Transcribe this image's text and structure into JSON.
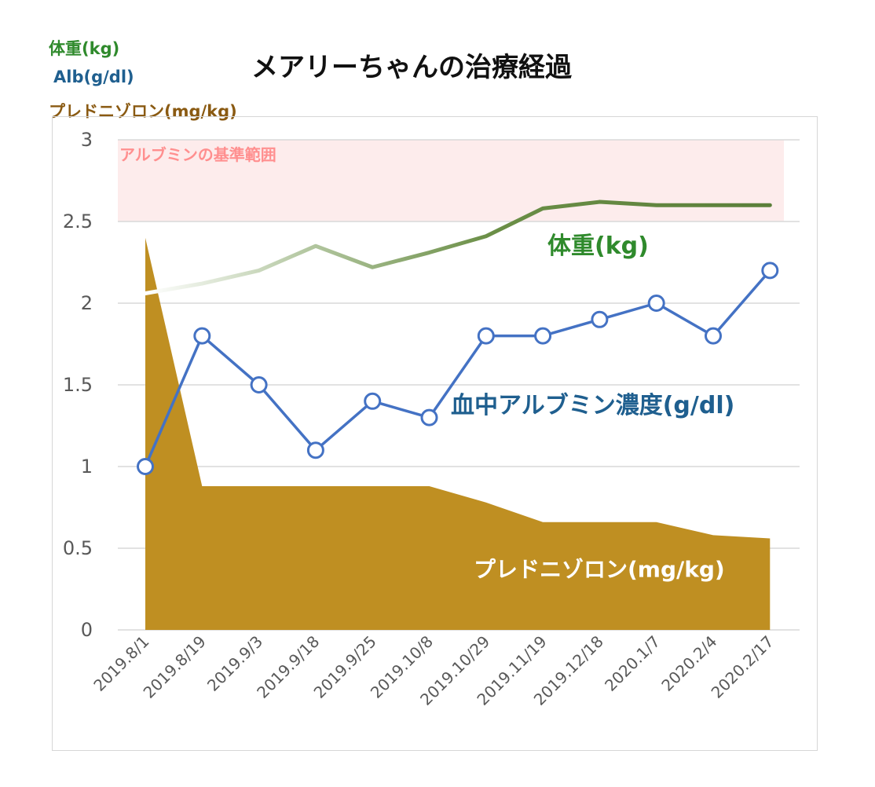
{
  "legend": {
    "weight": "体重(kg)",
    "alb": "Alb(g/dl)",
    "pred": "プレドニゾロン(mg/kg)"
  },
  "chart_data": {
    "type": "line",
    "title": "メアリーちゃんの治療経過",
    "categories": [
      "2019.8/1",
      "2019.8/19",
      "2019.9/3",
      "2019.9/18",
      "2019.9/25",
      "2019.10/8",
      "2019.10/29",
      "2019.11/19",
      "2019.12/18",
      "2020.1/7",
      "2020.2/4",
      "2020.2/17"
    ],
    "ylim": [
      0,
      3
    ],
    "yticks": [
      "0",
      "0.5",
      "1",
      "1.5",
      "2",
      "2.5",
      "3"
    ],
    "grid": true,
    "reference_band": {
      "label": "アルブミンの基準範囲",
      "from": 2.5,
      "to": 3.0,
      "color": "#fdecec"
    },
    "series": [
      {
        "name": "体重(kg)",
        "kind": "line",
        "color": "#5b8a3a",
        "values": [
          2.06,
          2.12,
          2.2,
          2.35,
          2.22,
          2.31,
          2.41,
          2.58,
          2.62,
          2.6,
          2.6,
          2.6
        ]
      },
      {
        "name": "血中アルブミン濃度(g/dl)",
        "kind": "line-marker",
        "color": "#4472c4",
        "values": [
          1.0,
          1.8,
          1.5,
          1.1,
          1.4,
          1.3,
          1.8,
          1.8,
          1.9,
          2.0,
          1.8,
          2.2
        ]
      },
      {
        "name": "プレドニゾロン(mg/kg)",
        "kind": "area",
        "color": "#bf8f22",
        "values": [
          2.4,
          0.88,
          0.88,
          0.88,
          0.88,
          0.88,
          0.78,
          0.66,
          0.66,
          0.66,
          0.58,
          0.56
        ]
      }
    ]
  }
}
